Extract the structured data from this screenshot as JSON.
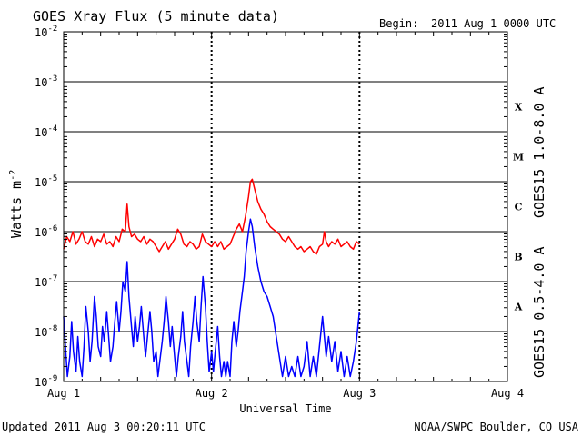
{
  "header": {
    "title": "GOES Xray Flux (5 minute data)",
    "begin_label": "Begin:",
    "begin_value": "2011 Aug 1 0000 UTC"
  },
  "footer": {
    "updated": "Updated 2011 Aug  3 00:20:11 UTC",
    "credit": "NOAA/SWPC Boulder, CO USA"
  },
  "colors": {
    "long": "#ff0000",
    "short": "#0000ff",
    "axis": "#000000"
  },
  "chart_data": {
    "type": "line",
    "xlabel": "Universal Time",
    "ylabel_base": "Watts m",
    "ylabel_exp": "-2",
    "yscale": "log",
    "ylim_exp": [
      -9,
      -2
    ],
    "xlim_hours": [
      0,
      72
    ],
    "grid": true,
    "x_ticks": [
      "Aug 1",
      "Aug 2",
      "Aug 3",
      "Aug 4"
    ],
    "y_ticks": [
      {
        "base": "10",
        "exp": "-9"
      },
      {
        "base": "10",
        "exp": "-8"
      },
      {
        "base": "10",
        "exp": "-7"
      },
      {
        "base": "10",
        "exp": "-6"
      },
      {
        "base": "10",
        "exp": "-5"
      },
      {
        "base": "10",
        "exp": "-4"
      },
      {
        "base": "10",
        "exp": "-3"
      },
      {
        "base": "10",
        "exp": "-2"
      }
    ],
    "flare_classes": [
      {
        "label": "A",
        "exp": -7.5
      },
      {
        "label": "B",
        "exp": -6.5
      },
      {
        "label": "C",
        "exp": -5.5
      },
      {
        "label": "M",
        "exp": -4.5
      },
      {
        "label": "X",
        "exp": -3.5
      }
    ],
    "series": [
      {
        "name": "GOES15 1.0-8.0 A",
        "color": "#ff0000",
        "points": [
          [
            0,
            -6.35
          ],
          [
            0.5,
            -6.1
          ],
          [
            1,
            -6.2
          ],
          [
            1.5,
            -6.0
          ],
          [
            2,
            -6.25
          ],
          [
            2.5,
            -6.15
          ],
          [
            3,
            -6.0
          ],
          [
            3.5,
            -6.2
          ],
          [
            4,
            -6.25
          ],
          [
            4.5,
            -6.1
          ],
          [
            5,
            -6.3
          ],
          [
            5.5,
            -6.15
          ],
          [
            6,
            -6.2
          ],
          [
            6.5,
            -6.05
          ],
          [
            7,
            -6.25
          ],
          [
            7.5,
            -6.2
          ],
          [
            8,
            -6.3
          ],
          [
            8.5,
            -6.1
          ],
          [
            9,
            -6.2
          ],
          [
            9.5,
            -5.95
          ],
          [
            10,
            -6.0
          ],
          [
            10.3,
            -5.45
          ],
          [
            10.6,
            -5.9
          ],
          [
            11,
            -6.1
          ],
          [
            11.5,
            -6.05
          ],
          [
            12,
            -6.15
          ],
          [
            12.5,
            -6.2
          ],
          [
            13,
            -6.1
          ],
          [
            13.5,
            -6.25
          ],
          [
            14,
            -6.15
          ],
          [
            14.5,
            -6.2
          ],
          [
            15,
            -6.3
          ],
          [
            15.5,
            -6.4
          ],
          [
            16,
            -6.3
          ],
          [
            16.5,
            -6.2
          ],
          [
            17,
            -6.35
          ],
          [
            17.5,
            -6.25
          ],
          [
            18,
            -6.15
          ],
          [
            18.5,
            -5.95
          ],
          [
            19,
            -6.05
          ],
          [
            19.5,
            -6.25
          ],
          [
            20,
            -6.3
          ],
          [
            20.5,
            -6.2
          ],
          [
            21,
            -6.25
          ],
          [
            21.5,
            -6.35
          ],
          [
            22,
            -6.3
          ],
          [
            22.5,
            -6.05
          ],
          [
            23,
            -6.2
          ],
          [
            23.5,
            -6.25
          ],
          [
            24,
            -6.3
          ],
          [
            24.5,
            -6.2
          ],
          [
            25,
            -6.3
          ],
          [
            25.5,
            -6.2
          ],
          [
            26,
            -6.35
          ],
          [
            26.5,
            -6.3
          ],
          [
            27,
            -6.25
          ],
          [
            27.5,
            -6.1
          ],
          [
            28,
            -5.95
          ],
          [
            28.5,
            -5.85
          ],
          [
            29,
            -6.0
          ],
          [
            29.5,
            -5.7
          ],
          [
            30,
            -5.3
          ],
          [
            30.3,
            -5.0
          ],
          [
            30.6,
            -4.95
          ],
          [
            31,
            -5.15
          ],
          [
            31.5,
            -5.4
          ],
          [
            32,
            -5.55
          ],
          [
            32.5,
            -5.65
          ],
          [
            33,
            -5.8
          ],
          [
            33.5,
            -5.9
          ],
          [
            34,
            -5.95
          ],
          [
            34.5,
            -6.0
          ],
          [
            35,
            -6.05
          ],
          [
            35.5,
            -6.15
          ],
          [
            36,
            -6.2
          ],
          [
            36.5,
            -6.1
          ],
          [
            37,
            -6.2
          ],
          [
            37.5,
            -6.3
          ],
          [
            38,
            -6.35
          ],
          [
            38.5,
            -6.3
          ],
          [
            39,
            -6.4
          ],
          [
            39.5,
            -6.35
          ],
          [
            40,
            -6.3
          ],
          [
            40.5,
            -6.4
          ],
          [
            41,
            -6.45
          ],
          [
            41.5,
            -6.3
          ],
          [
            42,
            -6.25
          ],
          [
            42.3,
            -6.0
          ],
          [
            42.6,
            -6.2
          ],
          [
            43,
            -6.3
          ],
          [
            43.5,
            -6.2
          ],
          [
            44,
            -6.25
          ],
          [
            44.5,
            -6.15
          ],
          [
            45,
            -6.3
          ],
          [
            45.5,
            -6.25
          ],
          [
            46,
            -6.2
          ],
          [
            46.5,
            -6.3
          ],
          [
            47,
            -6.35
          ],
          [
            47.5,
            -6.2
          ],
          [
            48,
            -6.25
          ]
        ]
      },
      {
        "name": "GOES15 0.5-4.0 A",
        "color": "#0000ff",
        "points": [
          [
            0,
            -7.7
          ],
          [
            0.3,
            -8.3
          ],
          [
            0.6,
            -8.9
          ],
          [
            1,
            -8.5
          ],
          [
            1.3,
            -7.8
          ],
          [
            1.6,
            -8.4
          ],
          [
            2,
            -8.8
          ],
          [
            2.3,
            -8.1
          ],
          [
            2.6,
            -8.6
          ],
          [
            3,
            -8.9
          ],
          [
            3.3,
            -8.3
          ],
          [
            3.6,
            -7.5
          ],
          [
            4,
            -8.0
          ],
          [
            4.3,
            -8.6
          ],
          [
            4.6,
            -8.2
          ],
          [
            5,
            -7.3
          ],
          [
            5.3,
            -7.7
          ],
          [
            5.6,
            -8.3
          ],
          [
            6,
            -8.5
          ],
          [
            6.3,
            -7.9
          ],
          [
            6.6,
            -8.2
          ],
          [
            7,
            -7.6
          ],
          [
            7.3,
            -8.1
          ],
          [
            7.6,
            -8.6
          ],
          [
            8,
            -8.3
          ],
          [
            8.3,
            -7.8
          ],
          [
            8.6,
            -7.4
          ],
          [
            9,
            -8.0
          ],
          [
            9.3,
            -7.6
          ],
          [
            9.6,
            -7.0
          ],
          [
            10,
            -7.2
          ],
          [
            10.3,
            -6.6
          ],
          [
            10.6,
            -7.3
          ],
          [
            11,
            -7.9
          ],
          [
            11.3,
            -8.3
          ],
          [
            11.6,
            -7.7
          ],
          [
            12,
            -8.2
          ],
          [
            12.3,
            -7.9
          ],
          [
            12.6,
            -7.5
          ],
          [
            13,
            -8.1
          ],
          [
            13.3,
            -8.5
          ],
          [
            13.6,
            -8.1
          ],
          [
            14,
            -7.6
          ],
          [
            14.3,
            -8.0
          ],
          [
            14.6,
            -8.6
          ],
          [
            15,
            -8.4
          ],
          [
            15.3,
            -8.9
          ],
          [
            15.6,
            -8.6
          ],
          [
            16,
            -8.2
          ],
          [
            16.3,
            -7.8
          ],
          [
            16.6,
            -7.3
          ],
          [
            17,
            -7.8
          ],
          [
            17.3,
            -8.3
          ],
          [
            17.6,
            -7.9
          ],
          [
            18,
            -8.5
          ],
          [
            18.3,
            -8.9
          ],
          [
            18.6,
            -8.5
          ],
          [
            19,
            -8.1
          ],
          [
            19.3,
            -7.6
          ],
          [
            19.6,
            -8.2
          ],
          [
            20,
            -8.6
          ],
          [
            20.3,
            -8.9
          ],
          [
            20.6,
            -8.3
          ],
          [
            21,
            -7.8
          ],
          [
            21.3,
            -7.3
          ],
          [
            21.6,
            -7.8
          ],
          [
            22,
            -8.2
          ],
          [
            22.3,
            -7.5
          ],
          [
            22.6,
            -6.9
          ],
          [
            23,
            -7.5
          ],
          [
            23.3,
            -8.2
          ],
          [
            23.6,
            -8.8
          ],
          [
            24,
            -8.4
          ],
          [
            24.3,
            -8.8
          ],
          [
            24.6,
            -8.4
          ],
          [
            25,
            -7.9
          ],
          [
            25.3,
            -8.5
          ],
          [
            25.6,
            -8.9
          ],
          [
            26,
            -8.6
          ],
          [
            26.3,
            -8.9
          ],
          [
            26.6,
            -8.6
          ],
          [
            27,
            -8.9
          ],
          [
            27.3,
            -8.2
          ],
          [
            27.6,
            -7.8
          ],
          [
            28,
            -8.3
          ],
          [
            28.3,
            -8.0
          ],
          [
            28.6,
            -7.6
          ],
          [
            29,
            -7.2
          ],
          [
            29.3,
            -6.9
          ],
          [
            29.6,
            -6.4
          ],
          [
            30,
            -6.0
          ],
          [
            30.3,
            -5.75
          ],
          [
            30.6,
            -5.9
          ],
          [
            31,
            -6.3
          ],
          [
            31.5,
            -6.7
          ],
          [
            32,
            -7.0
          ],
          [
            32.5,
            -7.2
          ],
          [
            33,
            -7.3
          ],
          [
            33.5,
            -7.5
          ],
          [
            34,
            -7.7
          ],
          [
            34.5,
            -8.1
          ],
          [
            35,
            -8.5
          ],
          [
            35.5,
            -8.9
          ],
          [
            36,
            -8.5
          ],
          [
            36.5,
            -8.9
          ],
          [
            37,
            -8.7
          ],
          [
            37.5,
            -8.9
          ],
          [
            38,
            -8.5
          ],
          [
            38.5,
            -8.9
          ],
          [
            39,
            -8.7
          ],
          [
            39.5,
            -8.2
          ],
          [
            40,
            -8.9
          ],
          [
            40.5,
            -8.5
          ],
          [
            41,
            -8.9
          ],
          [
            41.5,
            -8.3
          ],
          [
            42,
            -7.7
          ],
          [
            42.3,
            -8.1
          ],
          [
            42.6,
            -8.5
          ],
          [
            43,
            -8.1
          ],
          [
            43.5,
            -8.6
          ],
          [
            44,
            -8.2
          ],
          [
            44.5,
            -8.8
          ],
          [
            45,
            -8.4
          ],
          [
            45.5,
            -8.9
          ],
          [
            46,
            -8.5
          ],
          [
            46.5,
            -8.9
          ],
          [
            47,
            -8.6
          ],
          [
            47.5,
            -8.2
          ],
          [
            48,
            -7.6
          ]
        ]
      }
    ]
  }
}
